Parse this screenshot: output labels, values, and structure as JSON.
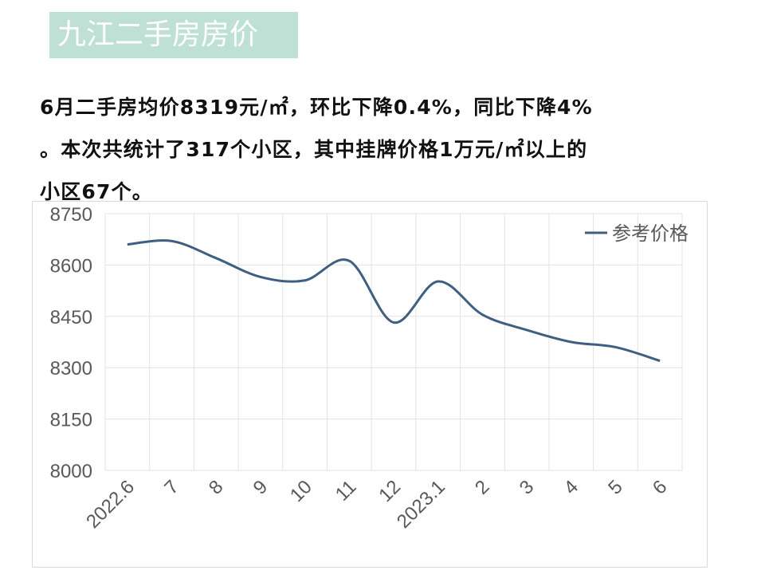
{
  "header": {
    "title": "九江二手房房价"
  },
  "summary": {
    "line1": "6月二手房均价8319元/㎡，环比下降0.4%，同比下降4%",
    "line2": "。本次共统计了317个小区，其中挂牌价格1万元/㎡以上的",
    "line3": "小区67个。"
  },
  "chart_data": {
    "type": "line",
    "categories": [
      "2022.6",
      "7",
      "8",
      "9",
      "10",
      "11",
      "12",
      "2023.1",
      "2",
      "3",
      "4",
      "5",
      "6"
    ],
    "series": [
      {
        "name": "参考价格",
        "color": "#3e5f7f",
        "values": [
          8660,
          8670,
          8620,
          8565,
          8555,
          8612,
          8432,
          8552,
          8455,
          8410,
          8375,
          8360,
          8320
        ]
      }
    ],
    "ylim": [
      8000,
      8750
    ],
    "yticks": [
      8000,
      8150,
      8300,
      8450,
      8600,
      8750
    ],
    "grid": true,
    "legend": "top-right",
    "title": "",
    "xlabel": "",
    "ylabel": ""
  },
  "colors": {
    "title_bg": "#bfe0d5",
    "line": "#3e5f7f",
    "grid": "#e3e3e3",
    "axis_text": "#595959"
  }
}
